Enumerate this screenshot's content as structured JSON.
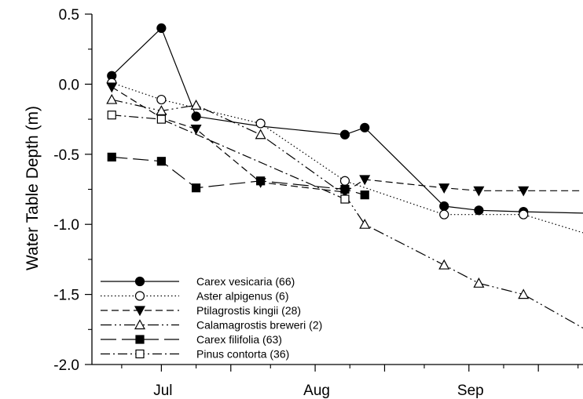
{
  "chart_data": {
    "type": "line",
    "title": "",
    "xlabel": "",
    "ylabel": "Water Table Depth (m)",
    "ylim": [
      -2.0,
      0.5
    ],
    "yticks": [
      0.5,
      0.0,
      -0.5,
      -1.0,
      -1.5,
      -2.0
    ],
    "ytick_labels": [
      "0.5",
      "0.0",
      "-0.5",
      "-1.0",
      "-1.5",
      "-2.0"
    ],
    "xlim": [
      "2005-06-17",
      "2005-09-24"
    ],
    "x_month_labels": [
      {
        "label": "Jul",
        "date": "2005-07-01"
      },
      {
        "label": "Aug",
        "date": "2005-08-01"
      },
      {
        "label": "Sep",
        "date": "2005-09-01"
      }
    ],
    "legend_position": "lower-left",
    "grid": false,
    "series": [
      {
        "name": "Carex vesicaria (66)",
        "marker": "filled-circle",
        "line_style": "solid",
        "points": [
          {
            "x": "2005-06-21",
            "y": 0.06,
            "marker": true
          },
          {
            "x": "2005-07-01",
            "y": 0.4,
            "marker": true
          },
          {
            "x": "2005-07-08",
            "y": -0.23,
            "marker": true
          },
          {
            "x": "2005-07-21",
            "y": -0.3,
            "marker": false
          },
          {
            "x": "2005-08-07",
            "y": -0.36,
            "marker": true
          },
          {
            "x": "2005-08-11",
            "y": -0.31,
            "marker": true
          },
          {
            "x": "2005-08-27",
            "y": -0.87,
            "marker": true
          },
          {
            "x": "2005-09-03",
            "y": -0.9,
            "marker": true
          },
          {
            "x": "2005-09-12",
            "y": -0.91,
            "marker": true
          },
          {
            "x": "2005-09-24",
            "y": -0.92,
            "marker": false
          }
        ]
      },
      {
        "name": "Aster alpigenus (6)",
        "marker": "open-circle",
        "line_style": "dotted",
        "points": [
          {
            "x": "2005-06-21",
            "y": 0.01,
            "marker": true
          },
          {
            "x": "2005-07-01",
            "y": -0.11,
            "marker": true
          },
          {
            "x": "2005-07-21",
            "y": -0.28,
            "marker": true
          },
          {
            "x": "2005-08-07",
            "y": -0.69,
            "marker": true
          },
          {
            "x": "2005-08-27",
            "y": -0.93,
            "marker": true
          },
          {
            "x": "2005-09-12",
            "y": -0.93,
            "marker": true
          },
          {
            "x": "2005-09-24",
            "y": -1.06,
            "marker": false
          }
        ]
      },
      {
        "name": "Ptilagrostis kingii (28)",
        "marker": "filled-triangle-down",
        "line_style": "dashed",
        "points": [
          {
            "x": "2005-06-21",
            "y": -0.02,
            "marker": true
          },
          {
            "x": "2005-07-01",
            "y": -0.24,
            "marker": true
          },
          {
            "x": "2005-07-08",
            "y": -0.32,
            "marker": true
          },
          {
            "x": "2005-07-21",
            "y": -0.7,
            "marker": true
          },
          {
            "x": "2005-08-07",
            "y": -0.77,
            "marker": true
          },
          {
            "x": "2005-08-11",
            "y": -0.68,
            "marker": true
          },
          {
            "x": "2005-08-27",
            "y": -0.74,
            "marker": true
          },
          {
            "x": "2005-09-03",
            "y": -0.76,
            "marker": true
          },
          {
            "x": "2005-09-12",
            "y": -0.76,
            "marker": true
          },
          {
            "x": "2005-09-24",
            "y": -0.76,
            "marker": false
          }
        ]
      },
      {
        "name": "Calamagrostis breweri (2)",
        "marker": "open-triangle-up",
        "line_style": "dash-dot-dot",
        "points": [
          {
            "x": "2005-06-21",
            "y": -0.11,
            "marker": true
          },
          {
            "x": "2005-07-01",
            "y": -0.19,
            "marker": true
          },
          {
            "x": "2005-07-08",
            "y": -0.15,
            "marker": true
          },
          {
            "x": "2005-07-21",
            "y": -0.36,
            "marker": true
          },
          {
            "x": "2005-08-07",
            "y": -0.79,
            "marker": false
          },
          {
            "x": "2005-08-11",
            "y": -1.0,
            "marker": true
          },
          {
            "x": "2005-08-27",
            "y": -1.29,
            "marker": true
          },
          {
            "x": "2005-09-03",
            "y": -1.42,
            "marker": true
          },
          {
            "x": "2005-09-12",
            "y": -1.5,
            "marker": true
          },
          {
            "x": "2005-09-24",
            "y": -1.74,
            "marker": false
          }
        ]
      },
      {
        "name": "Carex filifolia (63)",
        "marker": "filled-square",
        "line_style": "long-dash",
        "points": [
          {
            "x": "2005-06-21",
            "y": -0.52,
            "marker": true
          },
          {
            "x": "2005-07-01",
            "y": -0.55,
            "marker": true
          },
          {
            "x": "2005-07-08",
            "y": -0.74,
            "marker": true
          },
          {
            "x": "2005-07-21",
            "y": -0.69,
            "marker": true
          },
          {
            "x": "2005-08-07",
            "y": -0.75,
            "marker": true
          },
          {
            "x": "2005-08-11",
            "y": -0.79,
            "marker": true
          }
        ]
      },
      {
        "name": "Pinus contorta (36)",
        "marker": "open-square",
        "line_style": "dash-dot",
        "points": [
          {
            "x": "2005-06-21",
            "y": -0.22,
            "marker": true
          },
          {
            "x": "2005-07-01",
            "y": -0.25,
            "marker": true
          },
          {
            "x": "2005-08-07",
            "y": -0.82,
            "marker": true
          }
        ]
      }
    ]
  }
}
